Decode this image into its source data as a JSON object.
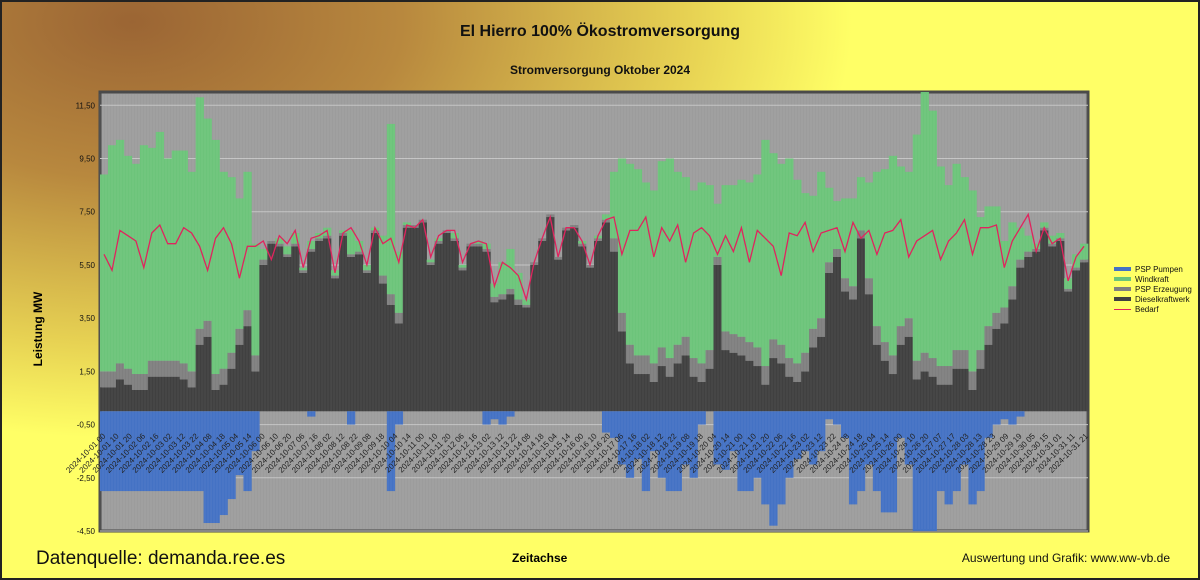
{
  "header": {
    "title": "El Hierro 100% Ökostromversorgung",
    "subtitle": "Stromversorgung Oktober 2024"
  },
  "footer": {
    "source": "Datenquelle: demanda.ree.es",
    "credit": "Auswertung und Grafik: www.ww-vb.de"
  },
  "colors": {
    "pump": "#4472c4",
    "wind": "#6cc47a",
    "psp_gen": "#7f7f7f",
    "diesel": "#404040",
    "demand": "#e0245e",
    "plot_bg": "#9c9c9c"
  },
  "chart_data": {
    "type": "bar",
    "stacked": true,
    "title": "El Hierro 100% Ökostromversorgung",
    "subtitle": "Stromversorgung Oktober 2024",
    "xlabel": "Zeitachse",
    "ylabel": "Leistung MW",
    "ylim": [
      -4.5,
      12.0
    ],
    "yticks": [
      11.5,
      9.5,
      7.5,
      5.5,
      3.5,
      1.5,
      -0.5,
      -2.5,
      -4.5
    ],
    "ytick_labels": [
      "11,50",
      "9,50",
      "7,50",
      "5,50",
      "3,50",
      "1,50",
      "-0,50",
      "-2,50",
      "-4,50"
    ],
    "grid": true,
    "legend_position": "right",
    "step_hours": 6,
    "x_start": "2024-10-01 00",
    "xtick_step_hours": 10,
    "xtick_labels": [
      "2024-10-01 00",
      "2024-10-01 10",
      "2024-10-01 20",
      "2024-10-02 06",
      "2024-10-02 16",
      "2024-10-03 02",
      "2024-10-03 12",
      "2024-10-03 22",
      "2024-10-04 08",
      "2024-10-04 18",
      "2024-10-05 04",
      "2024-10-05 14",
      "2024-10-06 00",
      "2024-10-06 10",
      "2024-10-06 20",
      "2024-10-07 06",
      "2024-10-07 16",
      "2024-10-08 02",
      "2024-10-08 12",
      "2024-10-08 22",
      "2024-10-09 08",
      "2024-10-09 18",
      "2024-10-10 04",
      "2024-10-10 14",
      "2024-10-11 00",
      "2024-10-11 10",
      "2024-10-11 20",
      "2024-10-12 06",
      "2024-10-12 16",
      "2024-10-13 02",
      "2024-10-13 12",
      "2024-10-13 22",
      "2024-10-14 08",
      "2024-10-14 18",
      "2024-10-15 04",
      "2024-10-15 14",
      "2024-10-16 00",
      "2024-10-16 10",
      "2024-10-16 20",
      "2024-10-17 06",
      "2024-10-17 16",
      "2024-10-18 02",
      "2024-10-18 12",
      "2024-10-18 22",
      "2024-10-19 08",
      "2024-10-19 18",
      "2024-10-20 04",
      "2024-10-20 14",
      "2024-10-21 00",
      "2024-10-21 10",
      "2024-10-21 20",
      "2024-10-22 06",
      "2024-10-22 16",
      "2024-10-23 02",
      "2024-10-23 12",
      "2024-10-23 22",
      "2024-10-24 08",
      "2024-10-24 18",
      "2024-10-25 04",
      "2024-10-25 14",
      "2024-10-26 00",
      "2024-10-26 10",
      "2024-10-26 20",
      "2024-10-27 07",
      "2024-10-27 17",
      "2024-10-28 03",
      "2024-10-28 13",
      "2024-10-28 23",
      "2024-10-29 09",
      "2024-10-29 19",
      "2024-10-30 05",
      "2024-10-30 15",
      "2024-10-31 01",
      "2024-10-31 11",
      "2024-10-31 21"
    ],
    "legend": [
      {
        "key": "pump",
        "label": "PSP Pumpen",
        "kind": "bar"
      },
      {
        "key": "wind",
        "label": "Windkraft",
        "kind": "bar"
      },
      {
        "key": "psp_gen",
        "label": "PSP Erzeugung",
        "kind": "bar"
      },
      {
        "key": "diesel",
        "label": "Dieselkraftwerk",
        "kind": "bar"
      },
      {
        "key": "demand",
        "label": "Bedarf",
        "kind": "line"
      }
    ],
    "series": {
      "diesel": [
        0.9,
        0.9,
        1.2,
        1.0,
        0.8,
        0.8,
        1.3,
        1.3,
        1.3,
        1.3,
        1.2,
        0.9,
        2.5,
        2.8,
        0.8,
        1.0,
        1.6,
        2.5,
        3.2,
        1.5,
        5.5,
        6.3,
        6.2,
        5.8,
        6.2,
        5.2,
        6.0,
        6.4,
        6.5,
        5.0,
        6.6,
        5.8,
        5.9,
        5.2,
        6.7,
        4.8,
        4.0,
        3.3,
        6.9,
        6.9,
        7.1,
        5.5,
        6.3,
        6.7,
        6.4,
        5.3,
        6.2,
        6.2,
        6.0,
        4.1,
        4.2,
        4.4,
        4.0,
        3.9,
        5.5,
        6.4,
        7.3,
        5.7,
        6.8,
        6.9,
        6.2,
        5.4,
        6.4,
        7.1,
        6.0,
        3.0,
        1.8,
        1.4,
        1.4,
        1.1,
        1.7,
        1.3,
        1.8,
        2.1,
        1.3,
        1.1,
        1.6,
        5.5,
        2.3,
        2.2,
        2.1,
        1.9,
        1.7,
        1.0,
        2.0,
        1.8,
        1.3,
        1.1,
        1.5,
        2.4,
        2.8,
        5.2,
        5.8,
        4.5,
        4.2,
        6.5,
        4.4,
        2.5,
        1.9,
        1.4,
        2.5,
        2.8,
        1.2,
        1.5,
        1.3,
        1.0,
        1.0,
        1.6,
        1.6,
        0.8,
        1.6,
        2.5,
        3.1,
        3.3,
        4.2,
        5.4,
        5.8,
        6.0,
        6.8,
        6.2,
        6.4,
        4.5,
        5.3,
        5.6
      ],
      "psp_gen": [
        0.6,
        0.6,
        0.6,
        0.6,
        0.6,
        0.6,
        0.6,
        0.6,
        0.6,
        0.6,
        0.6,
        0.6,
        0.6,
        0.6,
        0.6,
        0.6,
        0.6,
        0.6,
        0.6,
        0.6,
        0.2,
        0.1,
        0.1,
        0.1,
        0.1,
        0.1,
        0.1,
        0.1,
        0.1,
        0.1,
        0.1,
        0.1,
        0.1,
        0.1,
        0.1,
        0.3,
        0.4,
        0.4,
        0.1,
        0.1,
        0.1,
        0.1,
        0.1,
        0.1,
        0.1,
        0.1,
        0.1,
        0.1,
        0.1,
        0.2,
        0.2,
        0.2,
        0.2,
        0.1,
        0.1,
        0.1,
        0.1,
        0.1,
        0.1,
        0.1,
        0.1,
        0.1,
        0.1,
        0.1,
        0.5,
        0.7,
        0.7,
        0.7,
        0.7,
        0.7,
        0.7,
        0.7,
        0.7,
        0.7,
        0.7,
        0.7,
        0.7,
        0.3,
        0.7,
        0.7,
        0.7,
        0.7,
        0.7,
        0.7,
        0.7,
        0.7,
        0.7,
        0.7,
        0.7,
        0.7,
        0.7,
        0.4,
        0.3,
        0.5,
        0.5,
        0.3,
        0.6,
        0.7,
        0.7,
        0.7,
        0.7,
        0.7,
        0.7,
        0.7,
        0.7,
        0.7,
        0.7,
        0.7,
        0.7,
        0.7,
        0.7,
        0.7,
        0.6,
        0.6,
        0.5,
        0.3,
        0.2,
        0.1,
        0.1,
        0.1,
        0.1,
        0.1,
        0.1,
        0.1
      ],
      "wind": [
        7.4,
        8.5,
        8.4,
        8.0,
        7.9,
        8.6,
        8.0,
        8.6,
        7.6,
        7.9,
        8.0,
        7.5,
        8.7,
        7.6,
        8.8,
        7.4,
        6.6,
        4.9,
        5.2,
        4.2,
        0.4,
        0.0,
        0.2,
        0.3,
        0.4,
        0.1,
        0.3,
        0.2,
        0.3,
        0.2,
        0.1,
        0.9,
        0.4,
        0.2,
        0.1,
        1.5,
        6.4,
        2.3,
        0.1,
        0.0,
        0.0,
        0.1,
        0.1,
        0.0,
        0.2,
        0.1,
        0.0,
        0.1,
        0.2,
        0.5,
        1.2,
        1.5,
        1.0,
        0.2,
        0.0,
        0.0,
        0.0,
        0.0,
        0.0,
        0.0,
        0.1,
        0.0,
        0.1,
        0.2,
        2.5,
        5.8,
        6.8,
        7.0,
        6.5,
        6.5,
        7.0,
        7.5,
        6.5,
        6.0,
        6.3,
        6.8,
        6.2,
        2.0,
        5.5,
        5.6,
        5.9,
        6.0,
        6.5,
        8.5,
        7.0,
        6.8,
        7.5,
        6.9,
        6.0,
        5.0,
        5.5,
        2.8,
        1.8,
        3.0,
        3.3,
        2.0,
        3.6,
        5.8,
        6.5,
        7.5,
        6.0,
        5.5,
        8.5,
        9.8,
        9.3,
        7.5,
        6.8,
        7.0,
        6.5,
        6.8,
        5.0,
        4.5,
        4.0,
        2.5,
        2.4,
        1.2,
        0.6,
        0.2,
        0.2,
        0.3,
        0.2,
        0.4,
        0.5,
        0.6
      ],
      "pump": [
        -3.0,
        -3.0,
        -3.0,
        -3.0,
        -3.0,
        -3.0,
        -3.0,
        -3.0,
        -3.0,
        -3.0,
        -3.0,
        -3.0,
        -3.0,
        -4.2,
        -4.2,
        -3.9,
        -3.3,
        -2.4,
        -3.0,
        -1.5,
        0,
        0,
        0,
        0,
        0,
        0,
        -0.2,
        0,
        0,
        0,
        0,
        -0.5,
        0,
        0,
        0,
        0,
        -3.0,
        -0.5,
        0,
        0,
        0,
        0,
        0,
        0,
        0,
        0,
        0,
        0,
        -0.5,
        -0.3,
        -0.5,
        -0.2,
        0,
        0,
        0,
        0,
        0,
        0,
        0,
        0,
        0,
        0,
        0,
        -0.8,
        -1.0,
        -2.0,
        -2.5,
        -1.8,
        -3.0,
        -1.5,
        -2.5,
        -3.0,
        -3.0,
        -2.0,
        -2.5,
        -0.5,
        0,
        -2.0,
        -2.2,
        -1.5,
        -3.0,
        -3.0,
        -2.5,
        -3.5,
        -4.3,
        -3.5,
        -2.5,
        -1.8,
        -1.5,
        -2.0,
        -1.5,
        -0.3,
        -0.5,
        -1.0,
        -3.5,
        -3.0,
        -2.0,
        -3.0,
        -3.8,
        -3.8,
        -1.0,
        -2.0,
        -4.5,
        -4.5,
        -4.5,
        -3.0,
        -3.5,
        -3.0,
        -2.0,
        -3.5,
        -3.0,
        -1.0,
        -0.5,
        -0.3,
        -0.5,
        -0.2,
        0,
        0,
        0,
        0,
        0,
        0,
        0,
        0
      ],
      "demand": [
        5.9,
        5.3,
        6.8,
        6.6,
        6.4,
        5.4,
        6.7,
        7.0,
        6.3,
        6.3,
        6.9,
        6.7,
        6.2,
        5.3,
        6.5,
        6.9,
        6.3,
        5.0,
        6.2,
        6.2,
        6.4,
        5.7,
        6.6,
        6.3,
        6.8,
        5.4,
        6.5,
        6.6,
        6.8,
        5.2,
        6.7,
        6.9,
        6.4,
        5.5,
        6.9,
        6.3,
        6.5,
        5.6,
        7.0,
        6.9,
        7.2,
        5.8,
        6.6,
        6.8,
        6.8,
        5.6,
        6.3,
        6.4,
        6.3,
        4.7,
        5.6,
        5.4,
        5.1,
        4.2,
        5.6,
        6.5,
        7.3,
        5.8,
        6.9,
        6.9,
        6.4,
        5.5,
        6.6,
        7.2,
        7.3,
        5.9,
        6.8,
        6.8,
        7.3,
        5.8,
        6.9,
        6.4,
        7.0,
        5.6,
        6.7,
        6.9,
        6.6,
        5.9,
        6.6,
        6.0,
        6.9,
        5.6,
        6.8,
        6.5,
        6.2,
        5.1,
        6.7,
        6.6,
        7.1,
        6.0,
        6.7,
        6.8,
        6.9,
        6.0,
        7.1,
        6.5,
        6.8,
        5.9,
        6.7,
        6.8,
        7.2,
        5.8,
        6.4,
        6.6,
        6.8,
        5.7,
        6.4,
        6.7,
        7.2,
        5.9,
        6.9,
        6.9,
        7.0,
        5.4,
        6.4,
        6.9,
        7.4,
        6.0,
        6.9,
        6.3,
        6.5,
        4.9,
        5.8,
        6.2
      ]
    }
  }
}
